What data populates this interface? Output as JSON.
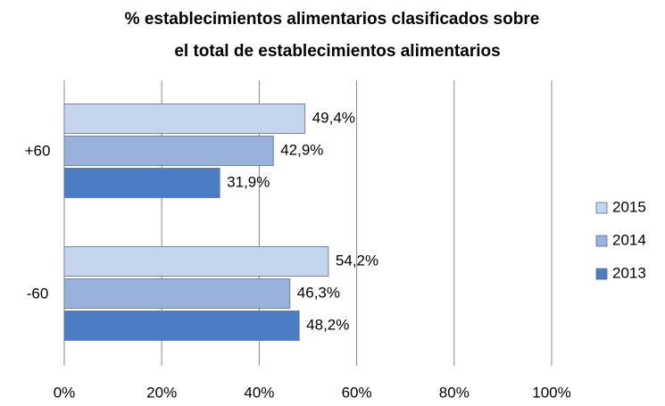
{
  "chart_data": {
    "type": "bar",
    "orientation": "horizontal",
    "title": [
      "% establecimientos alimentarios clasificados sobre",
      "el total de establecimientos alimentarios"
    ],
    "categories": [
      "+60",
      "-60"
    ],
    "series": [
      {
        "name": "2015",
        "color": "#c6d5ee",
        "values": [
          49.4,
          54.2
        ],
        "value_labels": [
          "49,4%",
          "54,2%"
        ]
      },
      {
        "name": "2014",
        "color": "#98b2dc",
        "values": [
          42.9,
          46.3
        ],
        "value_labels": [
          "42,9%",
          "46,3%"
        ]
      },
      {
        "name": "2013",
        "color": "#4c7dc4",
        "values": [
          31.9,
          48.2
        ],
        "value_labels": [
          "31,9%",
          "48,2%"
        ]
      }
    ],
    "xlim": [
      0,
      100
    ],
    "xticks": [
      {
        "value": 0,
        "label": "0%"
      },
      {
        "value": 20,
        "label": "20%"
      },
      {
        "value": 40,
        "label": "40%"
      },
      {
        "value": 60,
        "label": "60%"
      },
      {
        "value": 80,
        "label": "80%"
      },
      {
        "value": 100,
        "label": "100%"
      }
    ],
    "grid": true,
    "legend": "right"
  }
}
